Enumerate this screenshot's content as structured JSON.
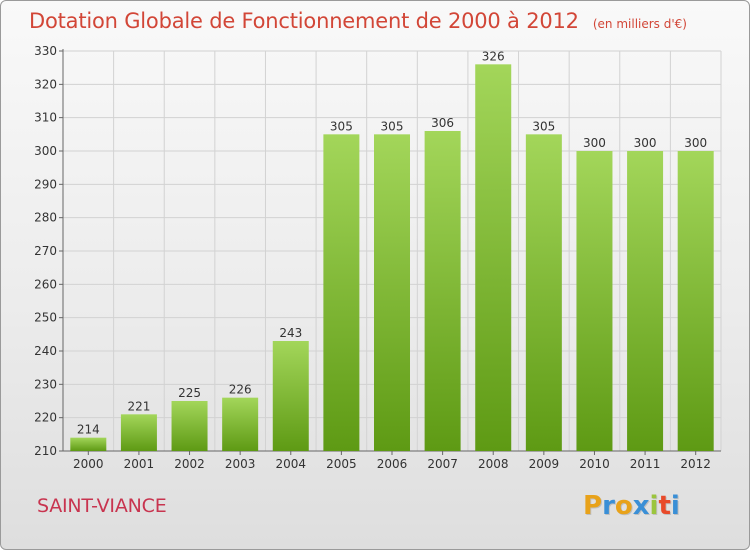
{
  "title": "Dotation Globale de Fonctionnement de 2000 à 2012",
  "subtitle": "(en milliers d'€)",
  "commune": "SAINT-VIANCE",
  "logo": {
    "letters": [
      "P",
      "r",
      "o",
      "x",
      "i",
      "t",
      "i"
    ],
    "colors": [
      "#e8a21a",
      "#3a8fd6",
      "#e8a21a",
      "#3a8fd6",
      "#9bc53d",
      "#e84a2a",
      "#3a8fd6"
    ]
  },
  "colors": {
    "bar_top": "#a3d65a",
    "bar_bottom": "#5e9a14",
    "title": "#d24637",
    "commune": "#c8344f"
  },
  "chart_data": {
    "type": "bar",
    "title": "Dotation Globale de Fonctionnement de 2000 à 2012",
    "subtitle": "(en milliers d'€)",
    "categories": [
      "2000",
      "2001",
      "2002",
      "2003",
      "2004",
      "2005",
      "2006",
      "2007",
      "2008",
      "2009",
      "2010",
      "2011",
      "2012"
    ],
    "values": [
      214,
      221,
      225,
      226,
      243,
      305,
      305,
      306,
      326,
      305,
      300,
      300,
      300
    ],
    "ylim": [
      210,
      330
    ],
    "yticks": [
      210,
      220,
      230,
      240,
      250,
      260,
      270,
      280,
      290,
      300,
      310,
      320,
      330
    ],
    "grid": true,
    "xlabel": "",
    "ylabel": ""
  }
}
